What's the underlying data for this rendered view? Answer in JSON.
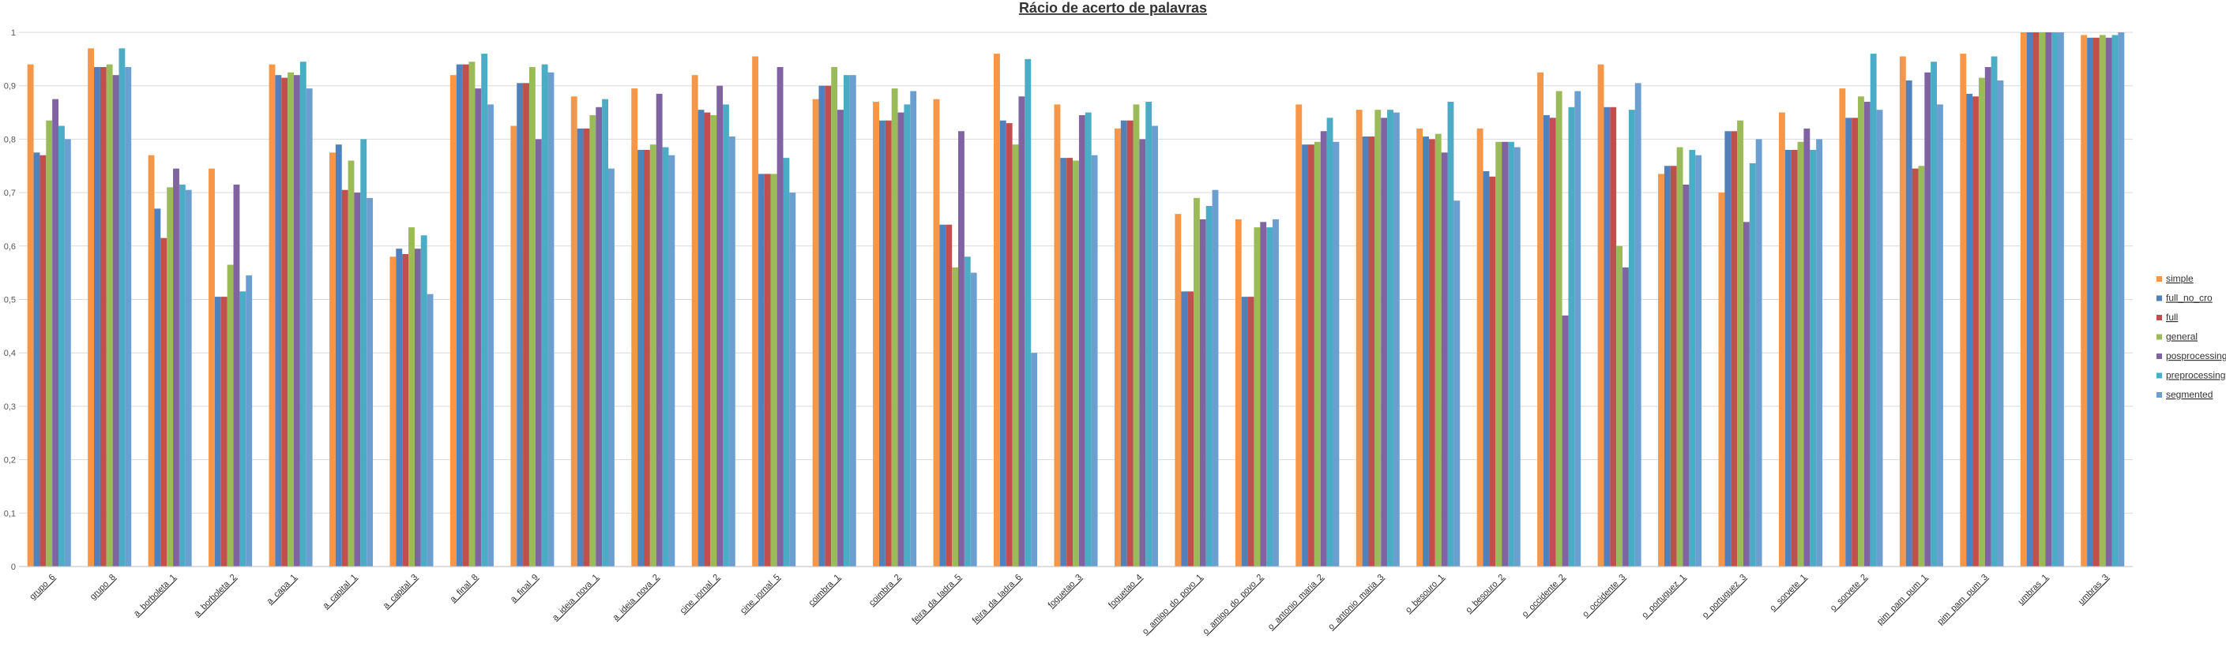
{
  "chart_data": {
    "type": "bar",
    "title": "Rácio de acerto de palavras",
    "xlabel": "",
    "ylabel": "",
    "ylim": [
      0,
      1
    ],
    "yticks": [
      "0",
      "0,1",
      "0,2",
      "0,3",
      "0,4",
      "0,5",
      "0,6",
      "0,7",
      "0,8",
      "0,9",
      "1"
    ],
    "grid": true,
    "legend_position": "right",
    "categories": [
      "grupo_6",
      "grupo_8",
      "a_borboleta_1",
      "a_borboleta_2",
      "a_capa_1",
      "a_capital_1",
      "a_capital_3",
      "a_final_8",
      "a_final_9",
      "a_ideia_nova_1",
      "a_ideia_nova_2",
      "cine_jornal_2",
      "cine_jornal_5",
      "coimbra_1",
      "coimbra_2",
      "feira_da_ladra_5",
      "feira_da_ladra_6",
      "foguetao_3",
      "foguetao_4",
      "o_amigo_do_povo_1",
      "o_amigo_do_povo_2",
      "o_antonio_maria_2",
      "o_antonio_maria_3",
      "o_besouro_1",
      "o_besouro_2",
      "o_occidente_2",
      "o_occidente_3",
      "o_portuguez_1",
      "o_portuguez_3",
      "o_sorvete_1",
      "o_sorvete_2",
      "pim_pam_pum_1",
      "pim_pam_pum_3",
      "umbras_1",
      "umbras_3"
    ],
    "series": [
      {
        "name": "simple",
        "color": "#F79646",
        "values": [
          0.94,
          0.97,
          0.77,
          0.745,
          0.94,
          0.775,
          0.58,
          0.92,
          0.825,
          0.88,
          0.895,
          0.92,
          0.955,
          0.875,
          0.87,
          0.875,
          0.96,
          0.865,
          0.82,
          0.66,
          0.65,
          0.865,
          0.855,
          0.82,
          0.82,
          0.925,
          0.94,
          0.735,
          0.7,
          0.85,
          0.895,
          0.955,
          0.96,
          1.0,
          0.995
        ]
      },
      {
        "name": "full_no_cro",
        "color": "#4F81BD",
        "values": [
          0.775,
          0.935,
          0.67,
          0.505,
          0.92,
          0.79,
          0.595,
          0.94,
          0.905,
          0.82,
          0.78,
          0.855,
          0.735,
          0.9,
          0.835,
          0.64,
          0.835,
          0.765,
          0.835,
          0.515,
          0.505,
          0.79,
          0.805,
          0.805,
          0.74,
          0.845,
          0.86,
          0.75,
          0.815,
          0.78,
          0.84,
          0.91,
          0.885,
          1.0,
          0.99
        ]
      },
      {
        "name": "full",
        "color": "#C0504D",
        "values": [
          0.77,
          0.935,
          0.615,
          0.505,
          0.915,
          0.705,
          0.585,
          0.94,
          0.905,
          0.82,
          0.78,
          0.85,
          0.735,
          0.9,
          0.835,
          0.64,
          0.83,
          0.765,
          0.835,
          0.515,
          0.505,
          0.79,
          0.805,
          0.8,
          0.73,
          0.84,
          0.86,
          0.75,
          0.815,
          0.78,
          0.84,
          0.745,
          0.88,
          1.0,
          0.99
        ]
      },
      {
        "name": "general",
        "color": "#9BBB59",
        "values": [
          0.835,
          0.94,
          0.71,
          0.565,
          0.925,
          0.76,
          0.635,
          0.945,
          0.935,
          0.845,
          0.79,
          0.845,
          0.735,
          0.935,
          0.895,
          0.56,
          0.79,
          0.76,
          0.865,
          0.69,
          0.635,
          0.795,
          0.855,
          0.81,
          0.795,
          0.89,
          0.6,
          0.785,
          0.835,
          0.795,
          0.88,
          0.75,
          0.915,
          1.0,
          0.995
        ]
      },
      {
        "name": "posprocessing",
        "color": "#8064A2",
        "values": [
          0.875,
          0.92,
          0.745,
          0.715,
          0.92,
          0.7,
          0.595,
          0.895,
          0.8,
          0.86,
          0.885,
          0.9,
          0.935,
          0.855,
          0.85,
          0.815,
          0.88,
          0.845,
          0.8,
          0.65,
          0.645,
          0.815,
          0.84,
          0.775,
          0.795,
          0.47,
          0.56,
          0.715,
          0.645,
          0.82,
          0.87,
          0.925,
          0.935,
          1.0,
          0.99
        ]
      },
      {
        "name": "preprocessing",
        "color": "#4BACC6",
        "values": [
          0.825,
          0.97,
          0.715,
          0.515,
          0.945,
          0.8,
          0.62,
          0.96,
          0.94,
          0.875,
          0.785,
          0.865,
          0.765,
          0.92,
          0.865,
          0.58,
          0.95,
          0.85,
          0.87,
          0.675,
          0.635,
          0.84,
          0.855,
          0.87,
          0.795,
          0.86,
          0.855,
          0.78,
          0.755,
          0.78,
          0.96,
          0.945,
          0.955,
          1.0,
          0.995
        ]
      },
      {
        "name": "segmented",
        "color": "#6A9FD0",
        "values": [
          0.8,
          0.935,
          0.705,
          0.545,
          0.895,
          0.69,
          0.51,
          0.865,
          0.925,
          0.745,
          0.77,
          0.805,
          0.7,
          0.92,
          0.89,
          0.55,
          0.4,
          0.77,
          0.825,
          0.705,
          0.65,
          0.795,
          0.85,
          0.685,
          0.785,
          0.89,
          0.905,
          0.77,
          0.8,
          0.8,
          0.855,
          0.865,
          0.91,
          1.0,
          1.0
        ]
      }
    ]
  }
}
